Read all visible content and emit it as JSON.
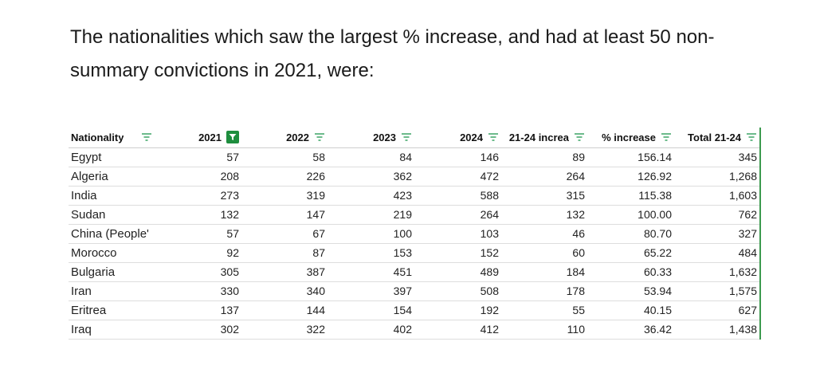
{
  "intro": {
    "text": "The nationalities which saw the largest % increase, and had at least 50 non-summary convictions in 2021, were:"
  },
  "table": {
    "headers": [
      {
        "label": "Nationality",
        "filter": "filter-icon"
      },
      {
        "label": "2021",
        "filter": "filter-active-icon"
      },
      {
        "label": "2022",
        "filter": "filter-icon"
      },
      {
        "label": "2023",
        "filter": "filter-icon"
      },
      {
        "label": "2024",
        "filter": "filter-icon"
      },
      {
        "label": "21-24 increa",
        "filter": "filter-icon"
      },
      {
        "label": "% increase",
        "filter": "filter-icon"
      },
      {
        "label": "Total 21-24",
        "filter": "filter-icon"
      }
    ],
    "rows": [
      [
        "Egypt",
        "57",
        "58",
        "84",
        "146",
        "89",
        "156.14",
        "345"
      ],
      [
        "Algeria",
        "208",
        "226",
        "362",
        "472",
        "264",
        "126.92",
        "1,268"
      ],
      [
        "India",
        "273",
        "319",
        "423",
        "588",
        "315",
        "115.38",
        "1,603"
      ],
      [
        "Sudan",
        "132",
        "147",
        "219",
        "264",
        "132",
        "100.00",
        "762"
      ],
      [
        "China (People'",
        "57",
        "67",
        "100",
        "103",
        "46",
        "80.70",
        "327"
      ],
      [
        "Morocco",
        "92",
        "87",
        "153",
        "152",
        "60",
        "65.22",
        "484"
      ],
      [
        "Bulgaria",
        "305",
        "387",
        "451",
        "489",
        "184",
        "60.33",
        "1,632"
      ],
      [
        "Iran",
        "330",
        "340",
        "397",
        "508",
        "178",
        "53.94",
        "1,575"
      ],
      [
        "Eritrea",
        "137",
        "144",
        "154",
        "192",
        "55",
        "40.15",
        "627"
      ],
      [
        "Iraq",
        "302",
        "322",
        "402",
        "412",
        "110",
        "36.42",
        "1,438"
      ]
    ],
    "colors": {
      "filter_active": "#1e8e3e",
      "filter_icon": "#2f9e5a",
      "sheet_edge": "#3c9a4e"
    }
  }
}
